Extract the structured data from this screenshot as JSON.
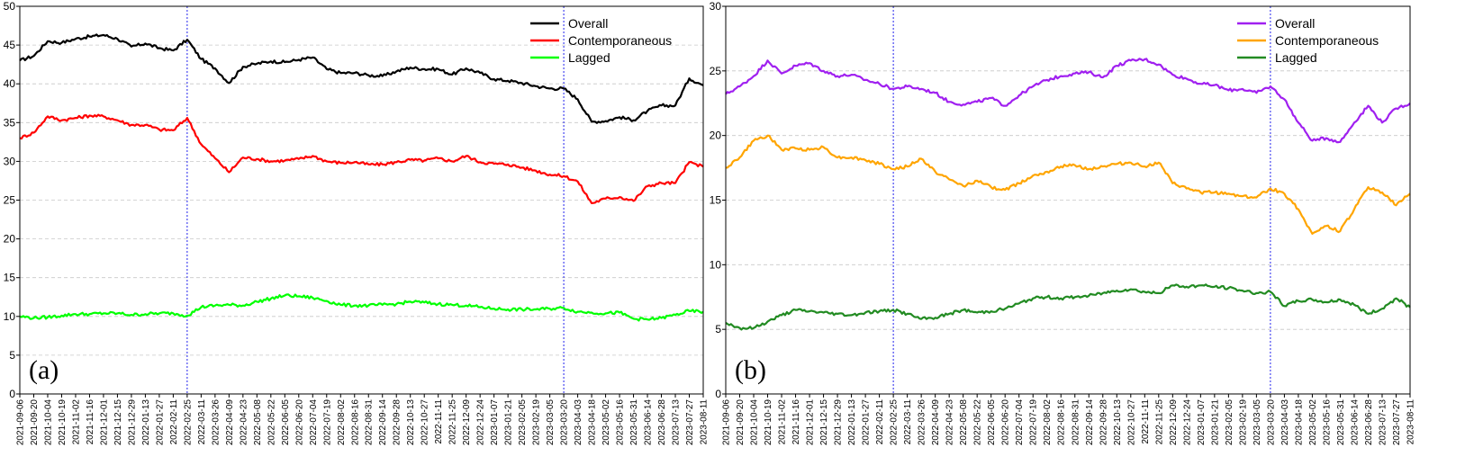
{
  "chart_data": [
    {
      "type": "line",
      "panel_label": "(a)",
      "ylim": [
        0,
        50
      ],
      "yticks": [
        0,
        5,
        10,
        15,
        20,
        25,
        30,
        35,
        40,
        45,
        50
      ],
      "grid": "horizontal dashed",
      "legend_position": "top-right",
      "event_dates": [
        "2022-02-25",
        "2023-03-20"
      ],
      "x": [
        "2021-09-06",
        "2021-09-20",
        "2021-10-04",
        "2021-10-19",
        "2021-11-02",
        "2021-11-16",
        "2021-12-01",
        "2021-12-15",
        "2021-12-29",
        "2022-01-13",
        "2022-01-27",
        "2022-02-11",
        "2022-02-25",
        "2022-03-11",
        "2022-03-26",
        "2022-04-09",
        "2022-04-23",
        "2022-05-08",
        "2022-05-22",
        "2022-06-05",
        "2022-06-20",
        "2022-07-04",
        "2022-07-19",
        "2022-08-02",
        "2022-08-16",
        "2022-08-31",
        "2022-09-14",
        "2022-09-28",
        "2022-10-13",
        "2022-10-27",
        "2022-11-11",
        "2022-11-25",
        "2022-12-09",
        "2022-12-24",
        "2023-01-07",
        "2023-01-21",
        "2023-02-05",
        "2023-02-19",
        "2023-03-05",
        "2023-03-20",
        "2023-04-03",
        "2023-04-18",
        "2023-05-02",
        "2023-05-16",
        "2023-05-31",
        "2023-06-14",
        "2023-06-28",
        "2023-07-13",
        "2023-07-27",
        "2023-08-11"
      ],
      "series": [
        {
          "name": "Overall",
          "color": "#000000",
          "values": [
            43.0,
            43.6,
            45.5,
            45.3,
            45.8,
            46.1,
            46.3,
            45.8,
            44.8,
            45.2,
            44.6,
            44.3,
            45.7,
            43.2,
            42.0,
            40.1,
            42.2,
            42.6,
            42.9,
            42.8,
            43.1,
            43.4,
            41.9,
            41.4,
            41.4,
            41.1,
            41.0,
            41.6,
            42.1,
            41.9,
            41.9,
            41.2,
            42.0,
            41.4,
            40.6,
            40.4,
            40.1,
            39.7,
            39.4,
            39.4,
            38.0,
            35.1,
            35.2,
            35.7,
            35.3,
            36.5,
            37.2,
            37.2,
            40.7,
            39.8
          ]
        },
        {
          "name": "Contemporaneous",
          "color": "#ff0000",
          "values": [
            33.0,
            33.7,
            35.8,
            35.3,
            35.6,
            35.9,
            35.8,
            35.3,
            34.7,
            34.7,
            34.1,
            34.0,
            35.6,
            32.2,
            30.4,
            28.6,
            30.5,
            30.3,
            30.0,
            30.1,
            30.3,
            30.7,
            30.0,
            29.8,
            29.9,
            29.6,
            29.6,
            29.9,
            30.2,
            30.1,
            30.4,
            30.0,
            30.7,
            29.9,
            29.7,
            29.6,
            29.2,
            28.8,
            28.3,
            28.1,
            27.4,
            24.6,
            25.2,
            25.4,
            24.9,
            26.8,
            27.2,
            27.2,
            29.9,
            29.3
          ]
        },
        {
          "name": "Lagged",
          "color": "#00ff00",
          "values": [
            10.0,
            9.8,
            9.9,
            10.1,
            10.3,
            10.3,
            10.4,
            10.4,
            10.2,
            10.3,
            10.4,
            10.4,
            10.1,
            11.2,
            11.4,
            11.5,
            11.4,
            11.9,
            12.3,
            12.7,
            12.6,
            12.4,
            12.0,
            11.5,
            11.4,
            11.4,
            11.5,
            11.6,
            11.9,
            11.8,
            11.6,
            11.5,
            11.4,
            11.2,
            11.0,
            10.9,
            10.9,
            10.9,
            11.0,
            11.1,
            10.6,
            10.5,
            10.4,
            10.5,
            9.7,
            9.6,
            9.8,
            10.2,
            10.7,
            10.6
          ]
        }
      ]
    },
    {
      "type": "line",
      "panel_label": "(b)",
      "ylim": [
        0,
        30
      ],
      "yticks": [
        0,
        5,
        10,
        15,
        20,
        25,
        30
      ],
      "grid": "horizontal dashed",
      "legend_position": "top-right",
      "event_dates": [
        "2022-02-25",
        "2023-03-20"
      ],
      "x": [
        "2021-09-06",
        "2021-09-20",
        "2021-10-04",
        "2021-10-19",
        "2021-11-02",
        "2021-11-16",
        "2021-12-01",
        "2021-12-15",
        "2021-12-29",
        "2022-01-13",
        "2022-01-27",
        "2022-02-11",
        "2022-02-25",
        "2022-03-11",
        "2022-03-26",
        "2022-04-09",
        "2022-04-23",
        "2022-05-08",
        "2022-05-22",
        "2022-06-05",
        "2022-06-20",
        "2022-07-04",
        "2022-07-19",
        "2022-08-02",
        "2022-08-16",
        "2022-08-31",
        "2022-09-14",
        "2022-09-28",
        "2022-10-13",
        "2022-10-27",
        "2022-11-11",
        "2022-11-25",
        "2022-12-09",
        "2022-12-24",
        "2023-01-07",
        "2023-01-21",
        "2023-02-05",
        "2023-02-19",
        "2023-03-05",
        "2023-03-20",
        "2023-04-03",
        "2023-04-18",
        "2023-05-02",
        "2023-05-16",
        "2023-05-31",
        "2023-06-14",
        "2023-06-28",
        "2023-07-13",
        "2023-07-27",
        "2023-08-11"
      ],
      "series": [
        {
          "name": "Overall",
          "color": "#a020f0",
          "values": [
            23.2,
            23.8,
            24.6,
            25.8,
            24.8,
            25.4,
            25.6,
            25.0,
            24.6,
            24.7,
            24.3,
            24.0,
            23.6,
            23.8,
            23.6,
            23.3,
            22.6,
            22.4,
            22.6,
            22.9,
            22.3,
            23.1,
            23.8,
            24.3,
            24.6,
            24.8,
            24.9,
            24.5,
            25.4,
            25.8,
            25.9,
            25.5,
            24.7,
            24.4,
            24.0,
            23.9,
            23.5,
            23.6,
            23.3,
            23.8,
            22.8,
            21.0,
            19.6,
            19.8,
            19.5,
            21.0,
            22.3,
            21.0,
            22.1,
            22.5
          ]
        },
        {
          "name": "Contemporaneous",
          "color": "#ffa500",
          "values": [
            17.5,
            18.3,
            19.6,
            20.0,
            18.9,
            19.0,
            18.9,
            19.1,
            18.3,
            18.3,
            18.1,
            17.8,
            17.4,
            17.6,
            18.2,
            17.2,
            16.6,
            16.1,
            16.5,
            16.0,
            15.8,
            16.3,
            16.9,
            17.2,
            17.6,
            17.7,
            17.4,
            17.6,
            17.8,
            17.9,
            17.6,
            17.9,
            16.3,
            15.9,
            15.6,
            15.6,
            15.5,
            15.3,
            15.2,
            15.9,
            15.5,
            14.3,
            12.4,
            13.0,
            12.6,
            14.3,
            16.0,
            15.6,
            14.6,
            15.5
          ]
        },
        {
          "name": "Lagged",
          "color": "#228b22",
          "values": [
            5.5,
            5.1,
            5.1,
            5.6,
            6.1,
            6.5,
            6.4,
            6.3,
            6.2,
            6.1,
            6.3,
            6.4,
            6.5,
            6.2,
            5.8,
            5.9,
            6.2,
            6.5,
            6.3,
            6.4,
            6.6,
            7.0,
            7.4,
            7.5,
            7.4,
            7.5,
            7.6,
            7.8,
            8.0,
            8.1,
            7.9,
            7.8,
            8.4,
            8.3,
            8.4,
            8.3,
            8.2,
            8.0,
            7.8,
            7.9,
            6.8,
            7.2,
            7.3,
            7.1,
            7.3,
            6.9,
            6.2,
            6.6,
            7.4,
            6.7
          ]
        }
      ]
    }
  ]
}
